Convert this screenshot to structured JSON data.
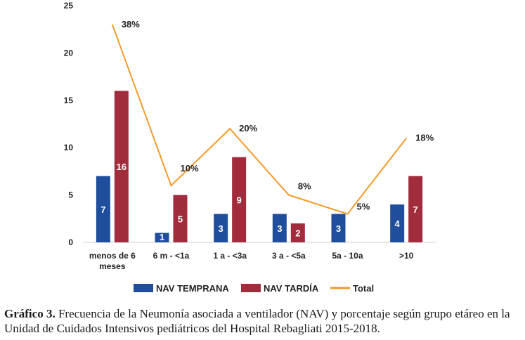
{
  "chart_data": {
    "type": "bar",
    "categories": [
      "menos de 6 meses",
      "6 m - <1a",
      "1 a - <3a",
      "3 a - <5a",
      "5a - 10a",
      ">10"
    ],
    "category_lines": [
      [
        "menos de 6",
        "meses"
      ],
      [
        "6 m - <1a"
      ],
      [
        "1 a - <3a"
      ],
      [
        "3 a - <5a"
      ],
      [
        "5a - 10a"
      ],
      [
        ">10"
      ]
    ],
    "series": [
      {
        "name": "NAV TEMPRANA",
        "type": "bar",
        "color": "#1f4e9c",
        "values": [
          7,
          1,
          3,
          3,
          3,
          4
        ]
      },
      {
        "name": "NAV TARDÍA",
        "type": "bar",
        "color": "#a02c3c",
        "values": [
          16,
          5,
          9,
          2,
          null,
          7
        ]
      },
      {
        "name": "Total",
        "type": "line",
        "color": "#f39a2c",
        "values": [
          23,
          6,
          12,
          5,
          3,
          11
        ],
        "labels": [
          "38%",
          "10%",
          "20%",
          "8%",
          "5%",
          "18%"
        ]
      }
    ],
    "bar_labels": {
      "NAV TEMPRANA": [
        "7",
        "1",
        "3",
        "3",
        "3",
        "4"
      ],
      "NAV TARDÍA": [
        "16",
        "5",
        "9",
        "2",
        "",
        "7"
      ]
    },
    "ylim": [
      0,
      25
    ],
    "yticks": [
      "0",
      "5",
      "10",
      "15",
      "20",
      "25"
    ],
    "ytick_values": [
      0,
      5,
      10,
      15,
      20,
      25
    ],
    "grid": false,
    "legend_position": "bottom",
    "xlabel": "",
    "ylabel": "",
    "title": ""
  },
  "caption": {
    "label": "Gráfico 3.",
    "text": "Frecuencia de la Neumonía asociada a ventilador (NAV) y porcentaje según grupo etáreo en la Unidad de Cuidados Intensivos pediátricos del Hospital Rebagliati 2015-2018."
  }
}
